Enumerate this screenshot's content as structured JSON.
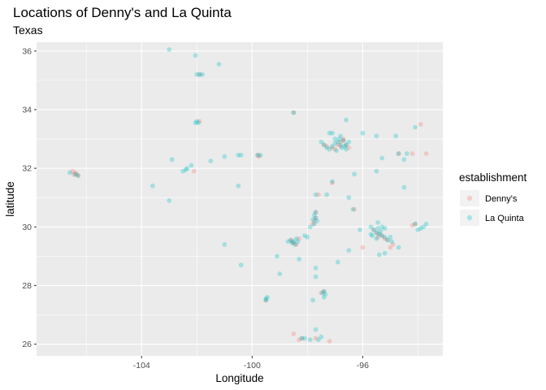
{
  "chart_data": {
    "type": "scatter",
    "title": "Locations of Denny's and La Quinta",
    "subtitle": "Texas",
    "xlabel": "Longitude",
    "ylabel": "latitude",
    "xlim": [
      -107.8,
      -93.1
    ],
    "ylim": [
      25.6,
      36.3
    ],
    "xticks": [
      -104,
      -100,
      -96
    ],
    "yticks": [
      26,
      28,
      30,
      32,
      34,
      36
    ],
    "grid": true,
    "legend": {
      "title": "establishment",
      "position": "right"
    },
    "series": [
      {
        "name": "Denny's",
        "color": "#F8766D",
        "points": [
          [
            -106.5,
            31.9
          ],
          [
            -106.4,
            31.85
          ],
          [
            -106.35,
            31.8
          ],
          [
            -106.3,
            31.75
          ],
          [
            -106.45,
            31.78
          ],
          [
            -99.8,
            32.45
          ],
          [
            -99.75,
            32.4
          ],
          [
            -98.5,
            33.9
          ],
          [
            -97.4,
            32.8
          ],
          [
            -97.3,
            32.75
          ],
          [
            -97.1,
            32.7
          ],
          [
            -96.9,
            32.8
          ],
          [
            -96.8,
            32.9
          ],
          [
            -96.7,
            32.95
          ],
          [
            -96.6,
            32.8
          ],
          [
            -96.7,
            33.0
          ],
          [
            -96.8,
            32.75
          ],
          [
            -97.0,
            32.65
          ],
          [
            -96.5,
            32.7
          ],
          [
            -97.7,
            30.3
          ],
          [
            -97.75,
            30.2
          ],
          [
            -97.7,
            30.5
          ],
          [
            -97.8,
            30.1
          ],
          [
            -98.5,
            29.45
          ],
          [
            -98.55,
            29.5
          ],
          [
            -98.4,
            29.4
          ],
          [
            -98.6,
            29.55
          ],
          [
            -98.3,
            29.6
          ],
          [
            -95.4,
            29.75
          ],
          [
            -95.5,
            29.8
          ],
          [
            -95.3,
            29.7
          ],
          [
            -95.2,
            29.6
          ],
          [
            -95.6,
            29.9
          ],
          [
            -95.45,
            29.65
          ],
          [
            -95.1,
            29.55
          ],
          [
            -94.9,
            29.4
          ],
          [
            -95.0,
            29.3
          ],
          [
            -94.1,
            30.1
          ],
          [
            -94.2,
            30.05
          ],
          [
            -97.4,
            27.8
          ],
          [
            -97.5,
            27.75
          ],
          [
            -97.2,
            26.1
          ],
          [
            -97.7,
            26.2
          ],
          [
            -98.2,
            26.2
          ],
          [
            -98.3,
            26.15
          ],
          [
            -99.5,
            27.5
          ],
          [
            -94.2,
            32.5
          ],
          [
            -94.7,
            32.5
          ],
          [
            -93.7,
            32.5
          ],
          [
            -93.9,
            33.5
          ],
          [
            -96.3,
            30.6
          ],
          [
            -97.1,
            31.5
          ],
          [
            -101.9,
            35.2
          ],
          [
            -102.1,
            31.9
          ],
          [
            -101.9,
            33.6
          ],
          [
            -96.0,
            29.3
          ],
          [
            -97.6,
            31.1
          ],
          [
            -98.5,
            26.35
          ]
        ]
      },
      {
        "name": "La Quinta",
        "color": "#00BFC4",
        "points": [
          [
            -106.6,
            31.85
          ],
          [
            -106.4,
            31.8
          ],
          [
            -106.3,
            31.75
          ],
          [
            -103.0,
            36.05
          ],
          [
            -102.05,
            35.85
          ],
          [
            -102.0,
            35.2
          ],
          [
            -101.9,
            35.2
          ],
          [
            -101.8,
            35.2
          ],
          [
            -101.2,
            35.55
          ],
          [
            -102.0,
            33.6
          ],
          [
            -101.95,
            33.55
          ],
          [
            -102.05,
            33.55
          ],
          [
            -102.4,
            31.95
          ],
          [
            -102.35,
            32.0
          ],
          [
            -102.5,
            31.9
          ],
          [
            -102.2,
            32.1
          ],
          [
            -102.9,
            32.3
          ],
          [
            -101.5,
            32.25
          ],
          [
            -101.0,
            32.4
          ],
          [
            -100.5,
            32.45
          ],
          [
            -100.4,
            32.45
          ],
          [
            -99.8,
            32.45
          ],
          [
            -99.7,
            32.45
          ],
          [
            -103.6,
            31.4
          ],
          [
            -103.0,
            30.9
          ],
          [
            -100.5,
            31.4
          ],
          [
            -101.0,
            29.4
          ],
          [
            -100.4,
            28.7
          ],
          [
            -98.5,
            33.9
          ],
          [
            -97.2,
            33.2
          ],
          [
            -97.1,
            33.2
          ],
          [
            -96.6,
            33.65
          ],
          [
            -96.0,
            33.2
          ],
          [
            -94.1,
            33.4
          ],
          [
            -94.8,
            33.1
          ],
          [
            -95.5,
            33.1
          ],
          [
            -97.4,
            32.8
          ],
          [
            -97.3,
            32.7
          ],
          [
            -97.1,
            32.75
          ],
          [
            -97.0,
            32.85
          ],
          [
            -96.9,
            32.9
          ],
          [
            -96.8,
            32.8
          ],
          [
            -96.7,
            32.95
          ],
          [
            -96.6,
            32.8
          ],
          [
            -96.85,
            33.0
          ],
          [
            -96.75,
            32.7
          ],
          [
            -96.65,
            32.75
          ],
          [
            -97.2,
            32.65
          ],
          [
            -96.5,
            32.9
          ],
          [
            -97.5,
            32.9
          ],
          [
            -96.6,
            32.65
          ],
          [
            -96.95,
            32.6
          ],
          [
            -97.0,
            33.0
          ],
          [
            -96.8,
            33.1
          ],
          [
            -95.3,
            32.35
          ],
          [
            -94.7,
            32.5
          ],
          [
            -94.4,
            32.5
          ],
          [
            -94.5,
            32.3
          ],
          [
            -96.3,
            31.8
          ],
          [
            -95.5,
            31.9
          ],
          [
            -94.5,
            31.35
          ],
          [
            -97.1,
            31.55
          ],
          [
            -97.3,
            31.1
          ],
          [
            -97.7,
            31.1
          ],
          [
            -96.5,
            31.0
          ],
          [
            -97.7,
            30.5
          ],
          [
            -97.75,
            30.4
          ],
          [
            -97.7,
            30.3
          ],
          [
            -97.8,
            30.25
          ],
          [
            -97.65,
            30.2
          ],
          [
            -97.75,
            30.1
          ],
          [
            -97.9,
            30.0
          ],
          [
            -98.1,
            29.7
          ],
          [
            -98.0,
            29.65
          ],
          [
            -98.5,
            29.5
          ],
          [
            -98.55,
            29.45
          ],
          [
            -98.45,
            29.4
          ],
          [
            -98.6,
            29.55
          ],
          [
            -98.35,
            29.5
          ],
          [
            -98.7,
            29.5
          ],
          [
            -98.4,
            29.6
          ],
          [
            -99.1,
            29.0
          ],
          [
            -99.0,
            28.4
          ],
          [
            -98.3,
            28.9
          ],
          [
            -97.7,
            28.6
          ],
          [
            -97.7,
            28.3
          ],
          [
            -97.4,
            27.8
          ],
          [
            -97.45,
            27.75
          ],
          [
            -97.35,
            27.7
          ],
          [
            -97.4,
            27.6
          ],
          [
            -97.8,
            27.5
          ],
          [
            -99.5,
            27.5
          ],
          [
            -99.45,
            27.6
          ],
          [
            -99.5,
            27.55
          ],
          [
            -98.2,
            26.2
          ],
          [
            -98.1,
            26.2
          ],
          [
            -97.9,
            26.15
          ],
          [
            -97.7,
            26.5
          ],
          [
            -97.6,
            26.15
          ],
          [
            -97.5,
            26.25
          ],
          [
            -95.4,
            29.75
          ],
          [
            -95.5,
            29.8
          ],
          [
            -95.3,
            29.7
          ],
          [
            -95.45,
            29.95
          ],
          [
            -95.6,
            29.9
          ],
          [
            -95.35,
            29.85
          ],
          [
            -95.2,
            29.65
          ],
          [
            -95.5,
            29.6
          ],
          [
            -95.1,
            29.55
          ],
          [
            -95.65,
            29.7
          ],
          [
            -95.7,
            29.75
          ],
          [
            -95.2,
            29.95
          ],
          [
            -95.3,
            30.0
          ],
          [
            -95.45,
            30.15
          ],
          [
            -95.0,
            29.65
          ],
          [
            -94.95,
            29.5
          ],
          [
            -95.2,
            29.1
          ],
          [
            -95.4,
            29.05
          ],
          [
            -95.7,
            30.0
          ],
          [
            -94.1,
            30.1
          ],
          [
            -93.8,
            30.0
          ],
          [
            -93.7,
            30.1
          ],
          [
            -94.0,
            29.9
          ],
          [
            -93.9,
            29.95
          ],
          [
            -96.35,
            30.6
          ],
          [
            -96.1,
            29.9
          ],
          [
            -96.5,
            29.2
          ],
          [
            -96.9,
            28.8
          ],
          [
            -94.7,
            29.3
          ]
        ]
      }
    ]
  }
}
